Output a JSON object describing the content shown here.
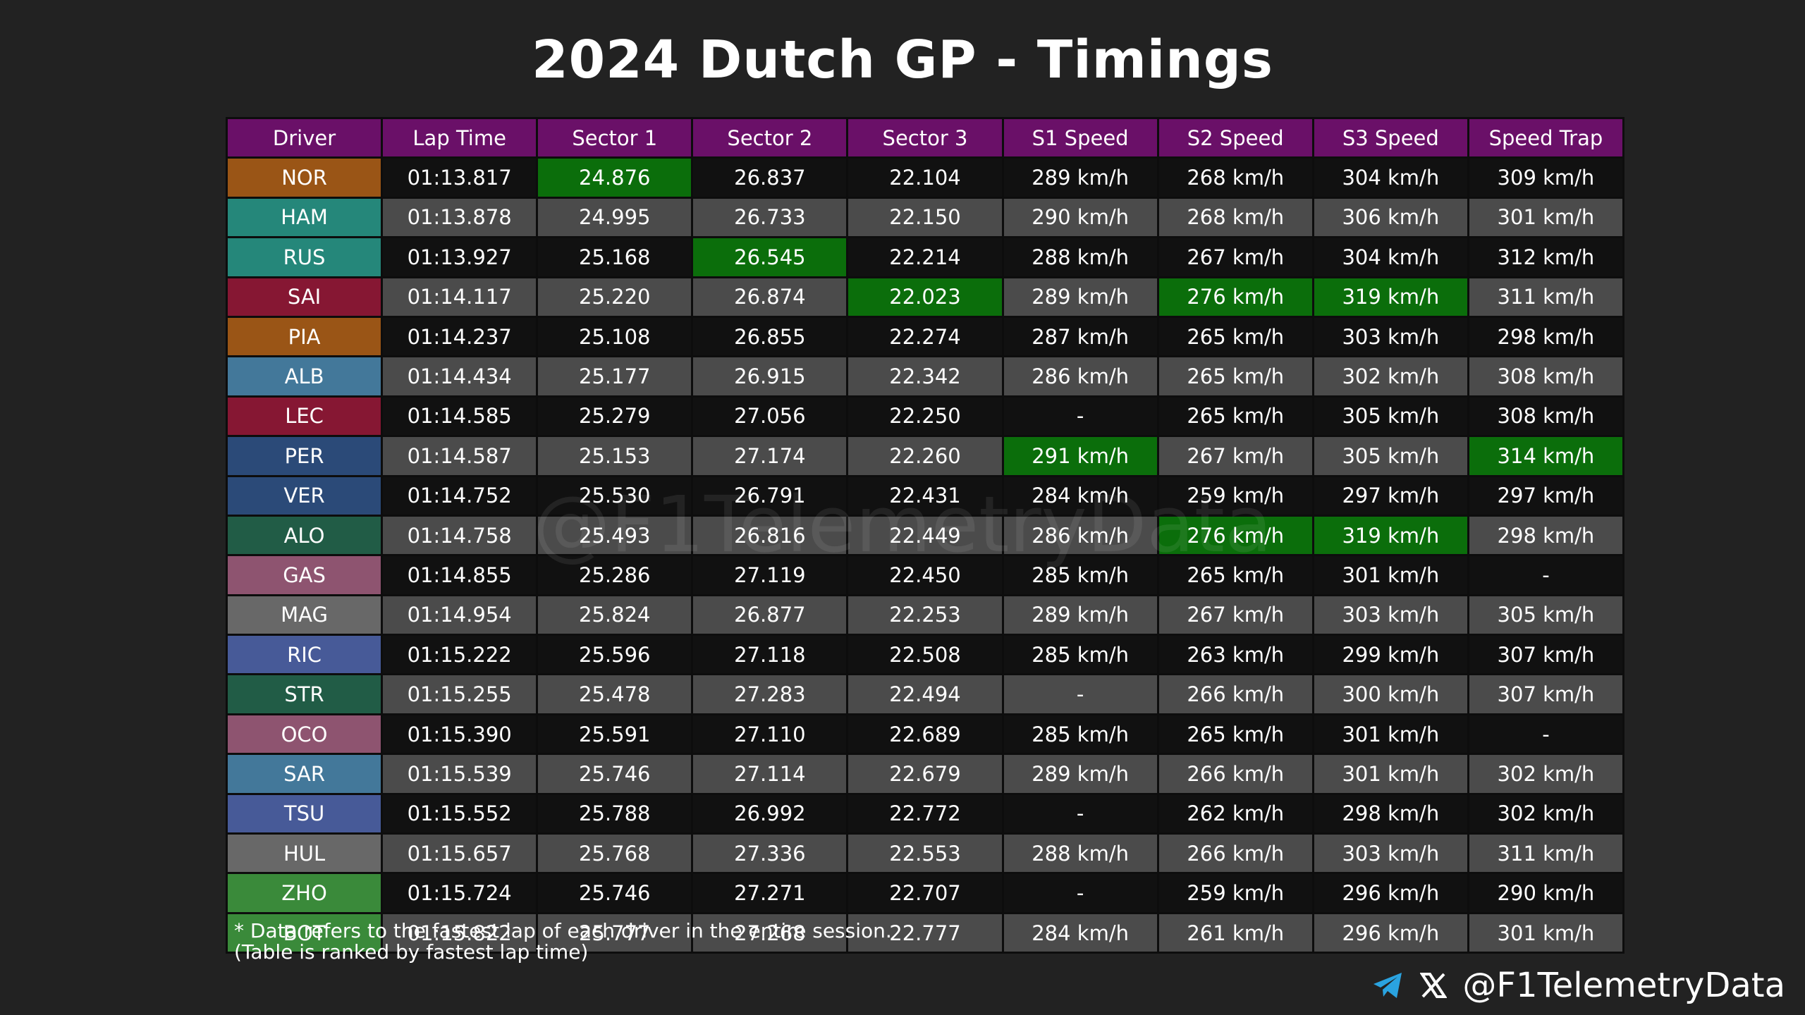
{
  "title": "2024 Dutch GP - Timings",
  "table": {
    "headers": [
      "Driver",
      "Lap Time",
      "Sector 1",
      "Sector 2",
      "Sector 3",
      "S1 Speed",
      "S2 Speed",
      "S3 Speed",
      "Speed Trap"
    ],
    "rows": [
      [
        "NOR",
        "01:13.817",
        "24.876",
        "26.837",
        "22.104",
        "289 km/h",
        "268 km/h",
        "304 km/h",
        "309 km/h"
      ],
      [
        "HAM",
        "01:13.878",
        "24.995",
        "26.733",
        "22.150",
        "290 km/h",
        "268 km/h",
        "306 km/h",
        "301 km/h"
      ],
      [
        "RUS",
        "01:13.927",
        "25.168",
        "26.545",
        "22.214",
        "288 km/h",
        "267 km/h",
        "304 km/h",
        "312 km/h"
      ],
      [
        "SAI",
        "01:14.117",
        "25.220",
        "26.874",
        "22.023",
        "289 km/h",
        "276 km/h",
        "319 km/h",
        "311 km/h"
      ],
      [
        "PIA",
        "01:14.237",
        "25.108",
        "26.855",
        "22.274",
        "287 km/h",
        "265 km/h",
        "303 km/h",
        "298 km/h"
      ],
      [
        "ALB",
        "01:14.434",
        "25.177",
        "26.915",
        "22.342",
        "286 km/h",
        "265 km/h",
        "302 km/h",
        "308 km/h"
      ],
      [
        "LEC",
        "01:14.585",
        "25.279",
        "27.056",
        "22.250",
        "-",
        "265 km/h",
        "305 km/h",
        "308 km/h"
      ],
      [
        "PER",
        "01:14.587",
        "25.153",
        "27.174",
        "22.260",
        "291 km/h",
        "267 km/h",
        "305 km/h",
        "314 km/h"
      ],
      [
        "VER",
        "01:14.752",
        "25.530",
        "26.791",
        "22.431",
        "284 km/h",
        "259 km/h",
        "297 km/h",
        "297 km/h"
      ],
      [
        "ALO",
        "01:14.758",
        "25.493",
        "26.816",
        "22.449",
        "286 km/h",
        "276 km/h",
        "319 km/h",
        "298 km/h"
      ],
      [
        "GAS",
        "01:14.855",
        "25.286",
        "27.119",
        "22.450",
        "285 km/h",
        "265 km/h",
        "301 km/h",
        "-"
      ],
      [
        "MAG",
        "01:14.954",
        "25.824",
        "26.877",
        "22.253",
        "289 km/h",
        "267 km/h",
        "303 km/h",
        "305 km/h"
      ],
      [
        "RIC",
        "01:15.222",
        "25.596",
        "27.118",
        "22.508",
        "285 km/h",
        "263 km/h",
        "299 km/h",
        "307 km/h"
      ],
      [
        "STR",
        "01:15.255",
        "25.478",
        "27.283",
        "22.494",
        "-",
        "266 km/h",
        "300 km/h",
        "307 km/h"
      ],
      [
        "OCO",
        "01:15.390",
        "25.591",
        "27.110",
        "22.689",
        "285 km/h",
        "265 km/h",
        "301 km/h",
        "-"
      ],
      [
        "SAR",
        "01:15.539",
        "25.746",
        "27.114",
        "22.679",
        "289 km/h",
        "266 km/h",
        "301 km/h",
        "302 km/h"
      ],
      [
        "TSU",
        "01:15.552",
        "25.788",
        "26.992",
        "22.772",
        "-",
        "262 km/h",
        "298 km/h",
        "302 km/h"
      ],
      [
        "HUL",
        "01:15.657",
        "25.768",
        "27.336",
        "22.553",
        "288 km/h",
        "266 km/h",
        "303 km/h",
        "311 km/h"
      ],
      [
        "ZHO",
        "01:15.724",
        "25.746",
        "27.271",
        "22.707",
        "-",
        "259 km/h",
        "296 km/h",
        "290 km/h"
      ],
      [
        "BOT",
        "01:15.822",
        "25.777",
        "27.268",
        "22.777",
        "284 km/h",
        "261 km/h",
        "296 km/h",
        "301 km/h"
      ]
    ],
    "driver_colors": [
      "#9a5516",
      "#25877a",
      "#25877a",
      "#861733",
      "#9a5516",
      "#43789a",
      "#861733",
      "#2b4a78",
      "#2b4a78",
      "#215c46",
      "#8e5470",
      "#686868",
      "#475a98",
      "#215c46",
      "#8e5470",
      "#43789a",
      "#475a98",
      "#686868",
      "#3a8a3a",
      "#3a8a3a"
    ],
    "highlight_color": "#0b6e0b",
    "highlighted": [
      "0.2",
      "2.3",
      "3.4",
      "3.6",
      "3.7",
      "7.5",
      "7.8",
      "9.6",
      "9.7"
    ]
  },
  "footnote": [
    "* Data refers to the fastest lap of each driver in the entire session.",
    "(Table is ranked by fastest lap time)"
  ],
  "watermark": "@F1TelemetryData",
  "handle": "@F1TelemetryData"
}
